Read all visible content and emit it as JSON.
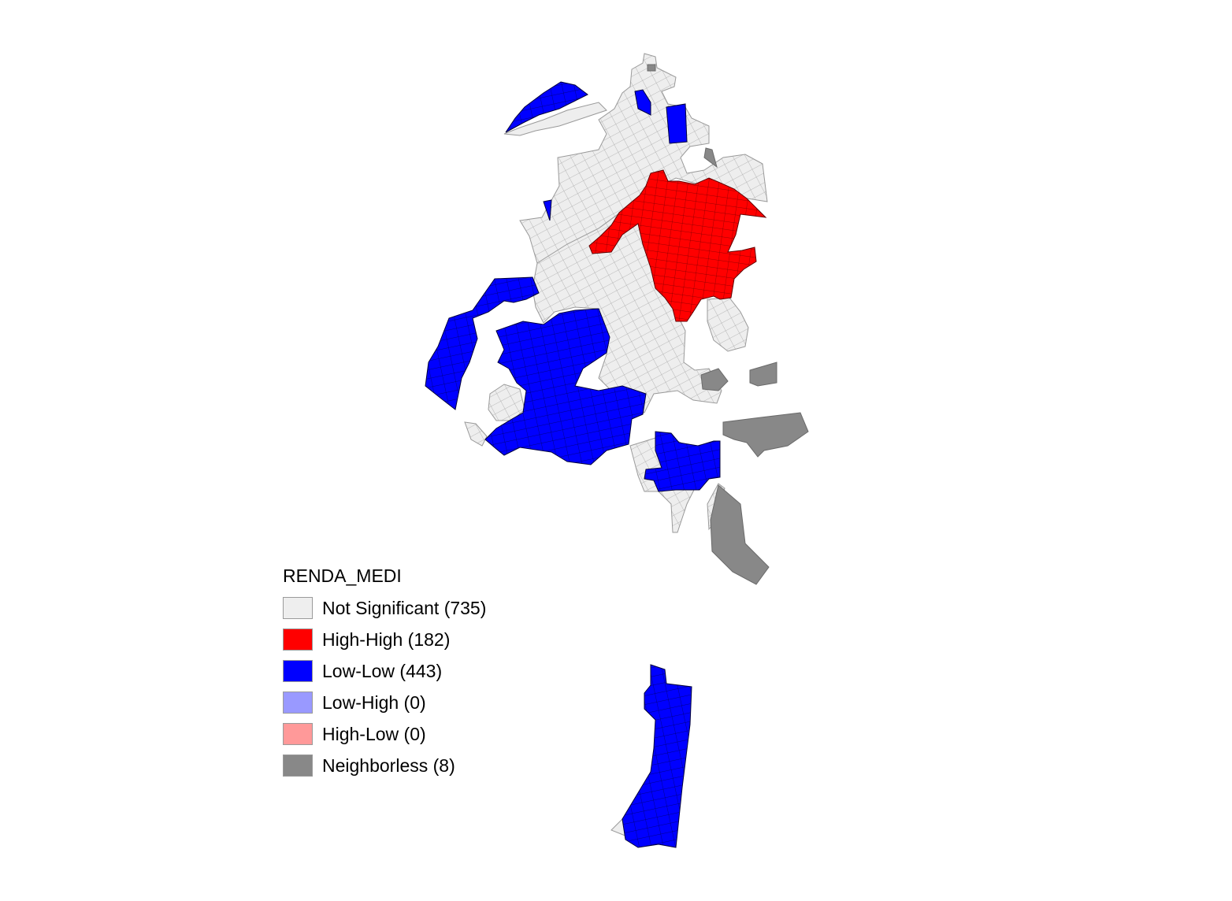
{
  "legend": {
    "title": "RENDA_MEDI",
    "items": [
      {
        "label": "Not Significant (735)",
        "color": "#eeeeee"
      },
      {
        "label": "High-High (182)",
        "color": "#ff0000"
      },
      {
        "label": "Low-Low (443)",
        "color": "#0000ff"
      },
      {
        "label": "Low-High (0)",
        "color": "#9999ff"
      },
      {
        "label": "High-Low (0)",
        "color": "#ff9999"
      },
      {
        "label": "Neighborless (8)",
        "color": "#888888"
      }
    ]
  },
  "colors": {
    "not_significant": "#eeeeee",
    "high_high": "#ff0000",
    "low_low": "#0000ff",
    "neighborless": "#888888",
    "tract_border": "#9a9a9a"
  }
}
